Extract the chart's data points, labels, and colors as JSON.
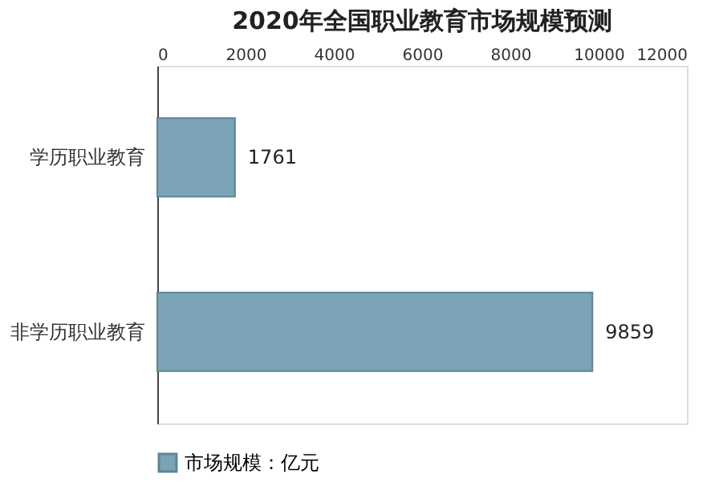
{
  "chart_data": {
    "type": "bar",
    "orientation": "horizontal",
    "title": "2020年全国职业教育市场规模预测",
    "categories": [
      "学历职业教育",
      "非学历职业教育"
    ],
    "series": [
      {
        "name": "市场规模：亿元",
        "color": "#7aa3b6",
        "values": [
          1761,
          9859
        ]
      }
    ],
    "xlim": [
      0,
      12000
    ],
    "xticks": [
      0,
      2000,
      4000,
      6000,
      8000,
      10000,
      12000
    ],
    "data_labels": true,
    "grid": false,
    "legend": "bottom"
  }
}
